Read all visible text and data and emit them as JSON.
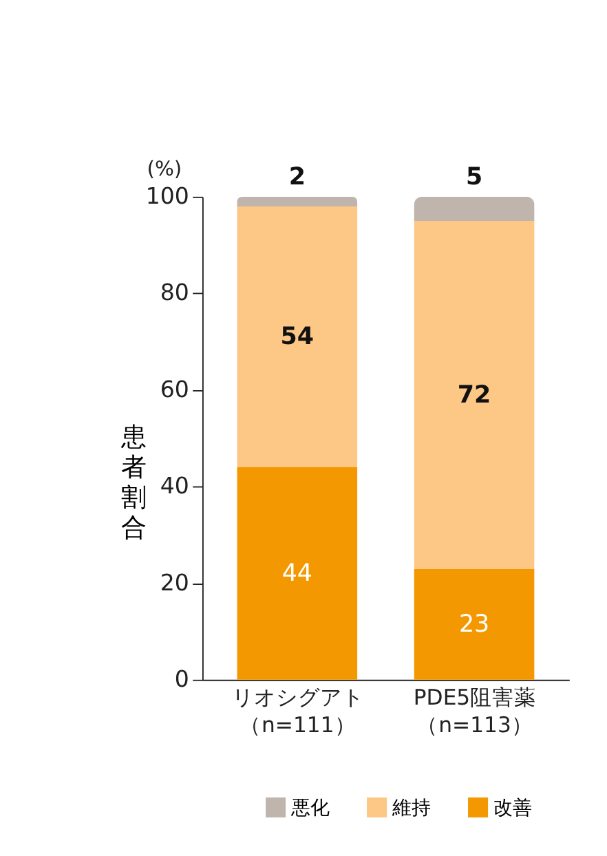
{
  "chart_data": {
    "type": "bar",
    "stacked": true,
    "data_labels": true,
    "legend": "bottom right",
    "grid": false,
    "ylabel": "患者割合",
    "annotations": [
      "(%)"
    ],
    "categories": [
      "リオシグアト（n=111）",
      "PDE5阻害薬（n=113）"
    ],
    "ylim": [
      0,
      100
    ],
    "yticks": [
      0,
      20,
      40,
      60,
      80,
      100
    ],
    "series": [
      {
        "name": "改善",
        "color": "#f39800",
        "values": [
          44,
          23
        ]
      },
      {
        "name": "維持",
        "color": "#fdc785",
        "values": [
          54,
          72
        ]
      },
      {
        "name": "悪化",
        "color": "#c0b5ad",
        "values": [
          2,
          5
        ]
      }
    ]
  }
}
